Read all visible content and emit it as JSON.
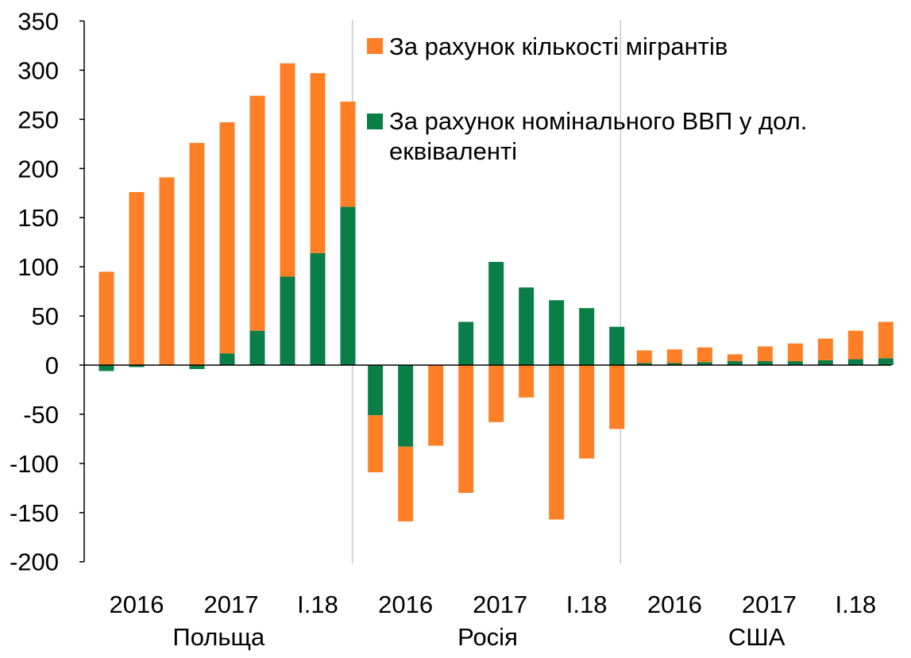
{
  "chart_data": {
    "type": "bar",
    "stacked": true,
    "ylim": [
      -200,
      350
    ],
    "yticks": [
      350,
      300,
      250,
      200,
      150,
      100,
      50,
      0,
      -50,
      -100,
      -150,
      -200
    ],
    "grid": "vertical separators between groups",
    "legend_position": "top-right",
    "colors": {
      "migrants": "#FF7F27",
      "gdp": "#0A7E47",
      "axis": "#000000",
      "separator": "#c8c8c8"
    },
    "groups": [
      {
        "name": "Польща",
        "year_labels": [
          "2016",
          "2017",
          "I.18"
        ],
        "migrants": [
          95,
          176,
          191,
          226,
          235,
          239,
          217,
          183,
          107
        ],
        "gdp": [
          -6,
          -2,
          0,
          -4,
          12,
          35,
          90,
          114,
          161
        ]
      },
      {
        "name": "Росія",
        "year_labels": [
          "2016",
          "2017",
          "I.18"
        ],
        "migrants": [
          -58,
          -76,
          -82,
          -130,
          -58,
          -33,
          -157,
          -95,
          -65
        ],
        "gdp": [
          -51,
          -83,
          0,
          44,
          105,
          79,
          66,
          58,
          39
        ]
      },
      {
        "name": "США",
        "year_labels": [
          "2016",
          "2017",
          "I.18"
        ],
        "migrants": [
          13,
          14,
          15,
          7,
          15,
          18,
          22,
          29,
          37
        ],
        "gdp": [
          2,
          2,
          3,
          4,
          4,
          4,
          5,
          6,
          7
        ]
      }
    ],
    "series": [
      {
        "key": "migrants",
        "name": "За рахунок кількості мігрантів"
      },
      {
        "key": "gdp",
        "name": "За рахунок номінального ВВП у дол. еквіваленті"
      }
    ]
  },
  "legend": {
    "line1": "За рахунок кількості мігрантів",
    "line2a": "За рахунок номінального ВВП у дол.",
    "line2b": "еквіваленті"
  }
}
